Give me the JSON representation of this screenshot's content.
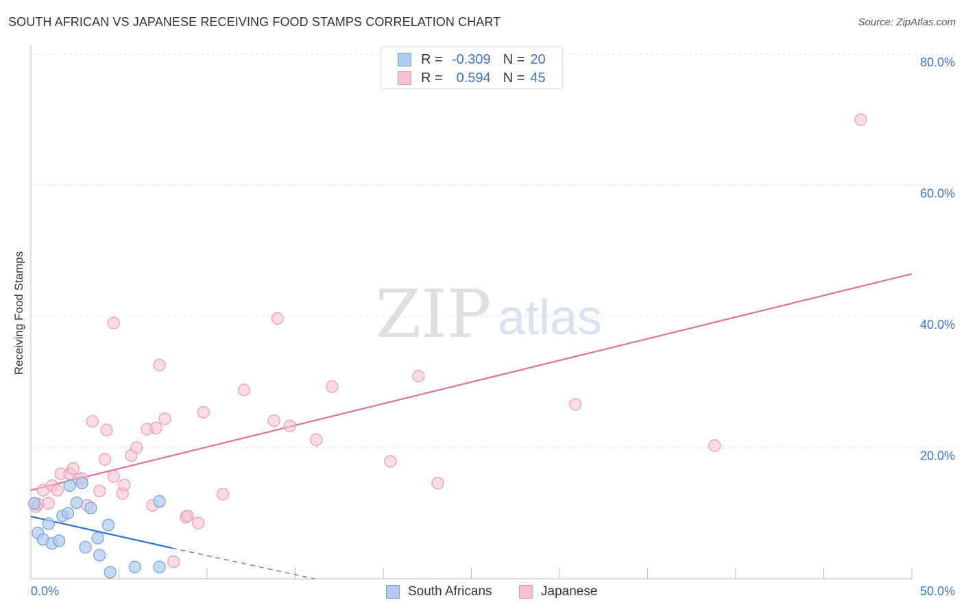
{
  "title": "SOUTH AFRICAN VS JAPANESE RECEIVING FOOD STAMPS CORRELATION CHART",
  "source": "Source: ZipAtlas.com",
  "watermark": {
    "zip": "ZIP",
    "atlas": "atlas"
  },
  "legend": {
    "rows": [
      {
        "r_label": "R =",
        "r_value": "-0.309",
        "n_label": "N =",
        "n_value": "20"
      },
      {
        "r_label": "R =",
        "r_value": "0.594",
        "n_label": "N =",
        "n_value": "45"
      }
    ]
  },
  "bottom_legend": {
    "south_africans": "South Africans",
    "japanese": "Japanese"
  },
  "colors": {
    "blue_fill": "#aecbf0",
    "blue_stroke": "#6fa0dc",
    "blue_line": "#2f6fd0",
    "pink_fill": "#f7bfd0",
    "pink_stroke": "#e898b2",
    "pink_line": "#e0709a",
    "axis_text": "#3a74c8",
    "grid": "#dddddd"
  },
  "chart_data": {
    "type": "scatter",
    "title": "SOUTH AFRICAN VS JAPANESE RECEIVING FOOD STAMPS CORRELATION CHART",
    "xlabel": "",
    "ylabel": "Receiving Food Stamps",
    "xlim": [
      0,
      50
    ],
    "ylim": [
      0,
      80
    ],
    "x_tick_labels": [
      "0.0%",
      "50.0%"
    ],
    "y_ticks": [
      20,
      40,
      60,
      80
    ],
    "y_tick_labels": [
      "20.0%",
      "40.0%",
      "60.0%",
      "80.0%"
    ],
    "series": [
      {
        "name": "South Africans",
        "r": -0.309,
        "n": 20,
        "points": [
          [
            0.2,
            11.5
          ],
          [
            0.4,
            7.0
          ],
          [
            0.7,
            6.0
          ],
          [
            1.0,
            8.4
          ],
          [
            1.2,
            5.4
          ],
          [
            1.6,
            5.8
          ],
          [
            1.8,
            9.6
          ],
          [
            2.1,
            10.0
          ],
          [
            2.2,
            14.2
          ],
          [
            2.6,
            11.6
          ],
          [
            2.9,
            14.6
          ],
          [
            3.1,
            4.8
          ],
          [
            3.4,
            10.8
          ],
          [
            3.8,
            6.2
          ],
          [
            3.9,
            3.6
          ],
          [
            4.4,
            8.2
          ],
          [
            4.5,
            1.0
          ],
          [
            5.9,
            1.8
          ],
          [
            7.3,
            1.8
          ],
          [
            7.3,
            11.8
          ]
        ],
        "trend_solid": [
          [
            0,
            9.5
          ],
          [
            8,
            4.7
          ]
        ],
        "trend_dashed": [
          [
            8,
            4.7
          ],
          [
            16.1,
            0
          ]
        ]
      },
      {
        "name": "Japanese",
        "r": 0.594,
        "n": 45,
        "points": [
          [
            0.3,
            11.0
          ],
          [
            0.4,
            11.4
          ],
          [
            0.7,
            13.5
          ],
          [
            1.0,
            11.5
          ],
          [
            1.2,
            14.2
          ],
          [
            1.5,
            13.5
          ],
          [
            1.7,
            16.0
          ],
          [
            2.2,
            16.0
          ],
          [
            2.4,
            16.8
          ],
          [
            2.7,
            15.2
          ],
          [
            2.9,
            15.3
          ],
          [
            3.2,
            11.2
          ],
          [
            3.5,
            24.0
          ],
          [
            3.9,
            13.4
          ],
          [
            4.2,
            18.2
          ],
          [
            4.3,
            22.7
          ],
          [
            4.7,
            15.6
          ],
          [
            4.7,
            39.0
          ],
          [
            5.2,
            13.0
          ],
          [
            5.3,
            14.3
          ],
          [
            5.7,
            18.8
          ],
          [
            6.0,
            20.0
          ],
          [
            6.6,
            22.8
          ],
          [
            6.9,
            11.2
          ],
          [
            7.1,
            23.0
          ],
          [
            7.3,
            32.6
          ],
          [
            7.6,
            24.4
          ],
          [
            8.1,
            2.6
          ],
          [
            8.8,
            9.4
          ],
          [
            8.9,
            9.6
          ],
          [
            9.5,
            8.5
          ],
          [
            9.8,
            25.4
          ],
          [
            10.9,
            12.9
          ],
          [
            12.1,
            28.8
          ],
          [
            13.8,
            24.1
          ],
          [
            14.0,
            39.7
          ],
          [
            14.7,
            23.3
          ],
          [
            16.2,
            21.2
          ],
          [
            17.1,
            29.3
          ],
          [
            20.4,
            17.9
          ],
          [
            22.0,
            30.9
          ],
          [
            23.1,
            14.6
          ],
          [
            30.9,
            26.6
          ],
          [
            38.8,
            20.3
          ],
          [
            47.1,
            70.0
          ]
        ],
        "trend": [
          [
            0,
            13.5
          ],
          [
            50,
            46.5
          ]
        ]
      }
    ]
  }
}
